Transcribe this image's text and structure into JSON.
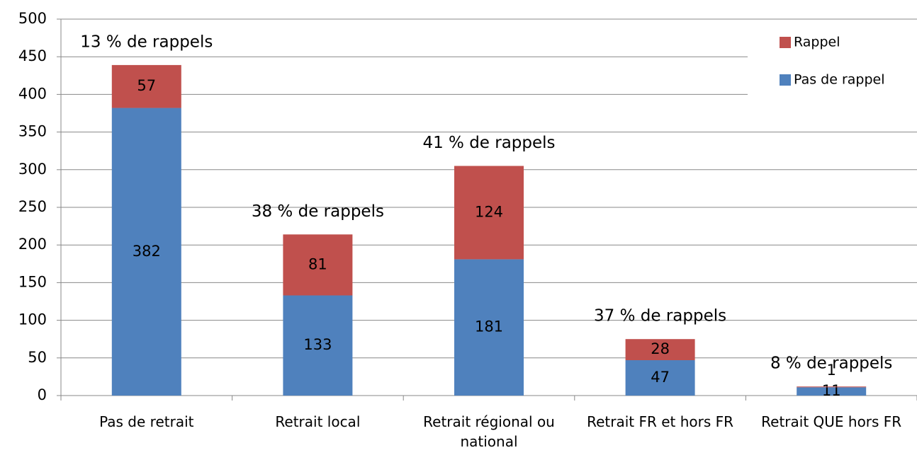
{
  "chart_data": {
    "type": "stacked_bar",
    "categories": [
      "Pas de retrait",
      "Retrait local",
      "Retrait régional ou national",
      "Retrait FR et hors FR",
      "Retrait QUE hors FR"
    ],
    "series": [
      {
        "name": "Pas de rappel",
        "color": "#4f81bd",
        "values": [
          382,
          133,
          181,
          47,
          11
        ]
      },
      {
        "name": "Rappel",
        "color": "#c0504d",
        "values": [
          57,
          81,
          124,
          28,
          1
        ]
      }
    ],
    "annotations": [
      "13 % de rappels",
      "38 % de rappels",
      "41 % de rappels",
      "37 % de rappels",
      "8 % de rappels"
    ],
    "ylim": [
      0,
      500
    ],
    "yticks": [
      0,
      50,
      100,
      150,
      200,
      250,
      300,
      350,
      400,
      450,
      500
    ],
    "grid": true,
    "legend": "top-right"
  }
}
